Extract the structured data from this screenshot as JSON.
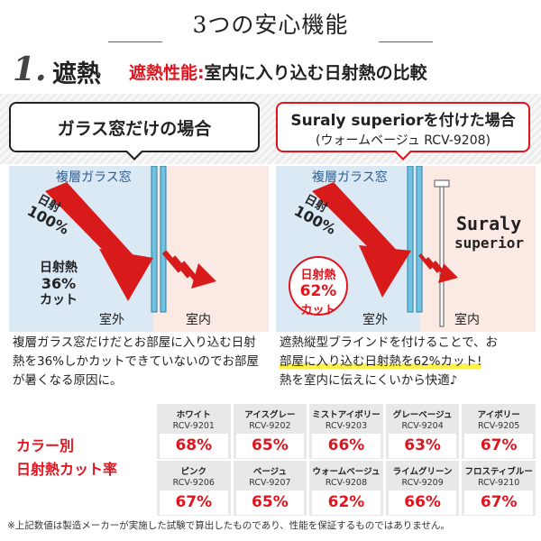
{
  "header": {
    "title": "3つの安心機能"
  },
  "section": {
    "number": "1.",
    "name": "遮熱",
    "subtitle_red": "遮熱性能:",
    "subtitle": "室内に入り込む日射熱の比較"
  },
  "left_panel": {
    "bubble_label": "ガラス窓だけの場合",
    "window_label": "複層ガラス窓",
    "sun_label": "日射",
    "sun_percent": "100%",
    "cut_line1": "日射熱",
    "cut_line2": "36%",
    "cut_line3": "カット",
    "outdoor": "室外",
    "indoor": "室内",
    "description": "複層ガラス窓だけだとお部屋に入り込む日射熱を36%しかカットできていないのでお部屋が暑くなる原因に。"
  },
  "right_panel": {
    "bubble_label": "Suraly superiorを付けた場合",
    "bubble_model": "(ウォームベージュ RCV-9208)",
    "window_label": "複層ガラス窓",
    "sun_label": "日射",
    "sun_percent": "100%",
    "brand_line1": "Suraly",
    "brand_line2": "superior",
    "badge_line1": "日射熱",
    "badge_line2": "62%",
    "badge_line3": "カット",
    "outdoor": "室外",
    "indoor": "室内",
    "description_part1": "遮熱縦型ブラインドを付けることで、お",
    "description_highlight": "部屋に入り込む日射熱を62%カット!",
    "description_part2": "熱を室内に伝えにくいから快適♪"
  },
  "rates": {
    "title_line1": "カラー別",
    "title_line2": "日射熱カット率",
    "colors": [
      {
        "name": "ホワイト",
        "code": "RCV-9201",
        "percent": "68%"
      },
      {
        "name": "アイスグレー",
        "code": "RCV-9202",
        "percent": "65%"
      },
      {
        "name": "ミストアイボリー",
        "code": "RCV-9203",
        "percent": "66%"
      },
      {
        "name": "グレーベージュ",
        "code": "RCV-9204",
        "percent": "63%"
      },
      {
        "name": "アイボリー",
        "code": "RCV-9205",
        "percent": "67%"
      },
      {
        "name": "ピンク",
        "code": "RCV-9206",
        "percent": "67%"
      },
      {
        "name": "ベージュ",
        "code": "RCV-9207",
        "percent": "65%"
      },
      {
        "name": "ウォームベージュ",
        "code": "RCV-9208",
        "percent": "62%"
      },
      {
        "name": "ライムグリーン",
        "code": "RCV-9209",
        "percent": "66%"
      },
      {
        "name": "フロスティブルー",
        "code": "RCV-9210",
        "percent": "67%"
      }
    ]
  },
  "footnote": "※上記数値は製造メーカーが実施した試験で算出したものであり、性能を保証するものではありません。",
  "colors": {
    "accent_red": "#e0141e",
    "glass_blue": "#6fc3e0",
    "outdoor_blue": "#dbe9f5",
    "indoor_pink": "#fbeae4"
  }
}
